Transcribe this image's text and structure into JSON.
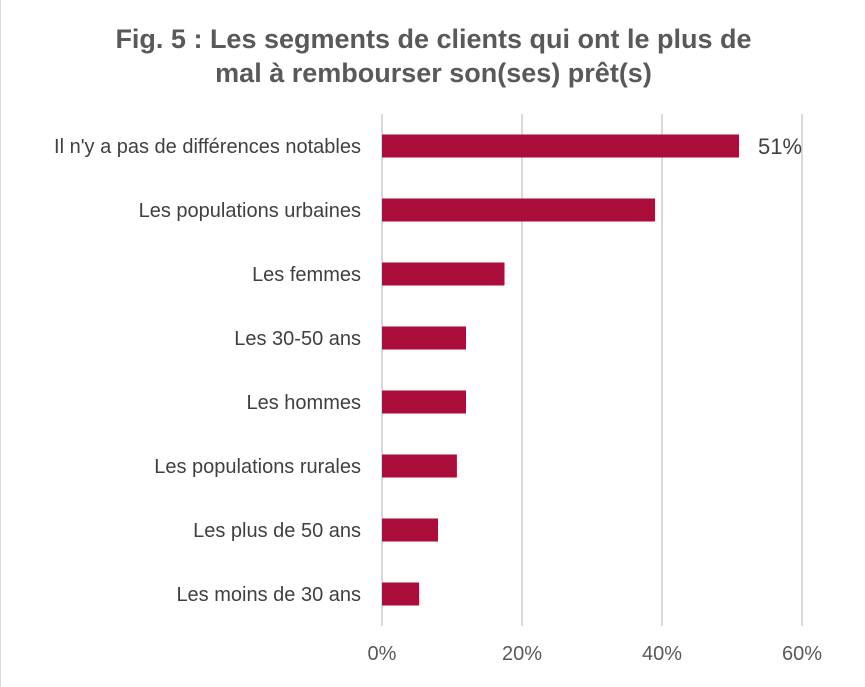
{
  "chart_data": {
    "type": "bar",
    "orientation": "horizontal",
    "title_lines": [
      "Fig. 5 : Les segments de clients qui ont le plus de",
      "mal à rembourser son(ses) prêt(s)"
    ],
    "categories": [
      "Il n'y a pas de différences notables",
      "Les populations urbaines",
      "Les femmes",
      "Les 30-50 ans",
      "Les hommes",
      "Les populations rurales",
      "Les plus de 50 ans",
      "Les moins de 30 ans"
    ],
    "values": [
      51,
      39,
      17.5,
      12,
      12,
      10.7,
      8,
      5.3
    ],
    "data_labels": [
      "51%",
      null,
      null,
      null,
      null,
      null,
      null,
      null
    ],
    "xlim": [
      0,
      60
    ],
    "xticks": [
      0,
      20,
      40,
      60
    ],
    "xtick_labels": [
      "0%",
      "20%",
      "40%",
      "60%"
    ],
    "xlabel": "",
    "ylabel": "",
    "grid": "vertical",
    "legend": "none",
    "bar_color": "#ab0d3b",
    "grid_color": "#d9d9d9"
  }
}
